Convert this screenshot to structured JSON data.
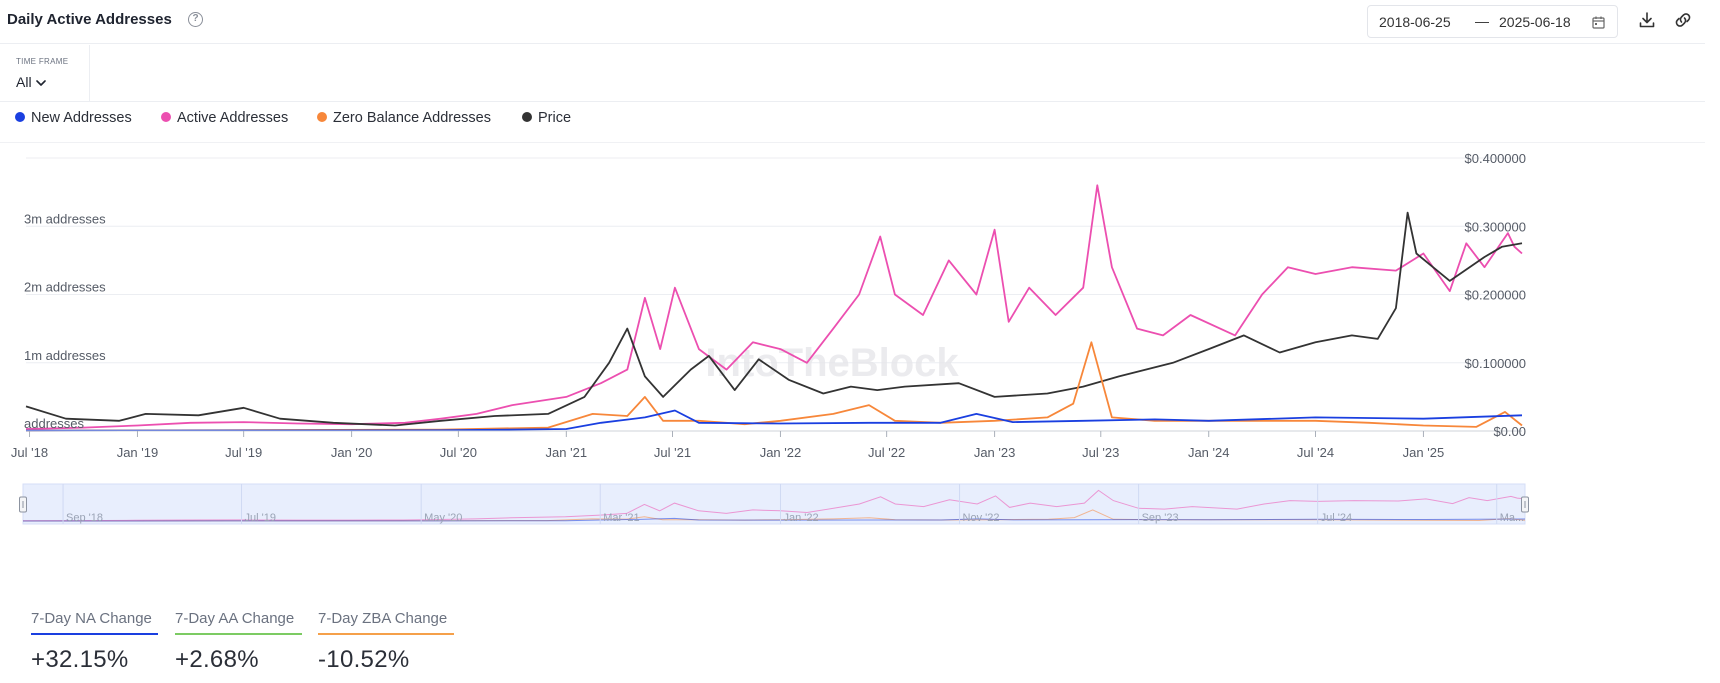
{
  "header": {
    "title": "Daily Active Addresses",
    "help_icon": "question-circle-icon",
    "date_start": "2018-06-25",
    "date_sep": "—",
    "date_end": "2025-06-18",
    "calendar_icon": "calendar-icon",
    "download_icon": "download-icon",
    "link_icon": "link-icon"
  },
  "timeframe": {
    "label": "TIME FRAME",
    "value": "All"
  },
  "legend": [
    {
      "label": "New Addresses",
      "color": "#1a3fe0"
    },
    {
      "label": "Active Addresses",
      "color": "#ec4fb0"
    },
    {
      "label": "Zero Balance Addresses",
      "color": "#f7873a"
    },
    {
      "label": "Price",
      "color": "#333333"
    }
  ],
  "watermark": "IntoTheBlock",
  "chart_data": {
    "type": "line",
    "x_ticks": [
      "Jul '18",
      "Jan '19",
      "Jul '19",
      "Jan '20",
      "Jul '20",
      "Jan '21",
      "Jul '21",
      "Jan '22",
      "Jul '22",
      "Jan '23",
      "Jul '23",
      "Jan '24",
      "Jul '24",
      "Jan '25"
    ],
    "y_left_ticks": [
      "addresses",
      "1m addresses",
      "2m addresses",
      "3m addresses"
    ],
    "y_right_ticks": [
      "$0.00",
      "$0.100000",
      "$0.200000",
      "$0.300000",
      "$0.400000"
    ],
    "y_left_range": [
      0,
      4000000
    ],
    "y_right_range": [
      0,
      0.4
    ],
    "x_range": [
      "2018-06-25",
      "2025-06-18"
    ],
    "grid": true,
    "legend_position": "top-left",
    "series": [
      {
        "name": "Active Addresses",
        "color": "#ec4fb0",
        "axis": "left",
        "points": [
          [
            "2018-06-25",
            30000
          ],
          [
            "2018-10-01",
            50000
          ],
          [
            "2019-01-01",
            80000
          ],
          [
            "2019-04-01",
            120000
          ],
          [
            "2019-07-01",
            130000
          ],
          [
            "2019-10-01",
            110000
          ],
          [
            "2020-01-01",
            100000
          ],
          [
            "2020-04-01",
            120000
          ],
          [
            "2020-06-01",
            180000
          ],
          [
            "2020-08-01",
            250000
          ],
          [
            "2020-10-01",
            380000
          ],
          [
            "2021-01-01",
            500000
          ],
          [
            "2021-03-01",
            700000
          ],
          [
            "2021-04-15",
            900000
          ],
          [
            "2021-05-15",
            1950000
          ],
          [
            "2021-06-10",
            1200000
          ],
          [
            "2021-07-05",
            2100000
          ],
          [
            "2021-08-15",
            1200000
          ],
          [
            "2021-10-01",
            900000
          ],
          [
            "2021-11-15",
            1300000
          ],
          [
            "2022-01-01",
            1200000
          ],
          [
            "2022-02-15",
            1000000
          ],
          [
            "2022-04-01",
            1500000
          ],
          [
            "2022-05-15",
            2000000
          ],
          [
            "2022-06-20",
            2850000
          ],
          [
            "2022-07-15",
            2000000
          ],
          [
            "2022-09-01",
            1700000
          ],
          [
            "2022-10-15",
            2500000
          ],
          [
            "2022-12-01",
            2000000
          ],
          [
            "2023-01-01",
            2950000
          ],
          [
            "2023-01-25",
            1600000
          ],
          [
            "2023-03-01",
            2100000
          ],
          [
            "2023-04-15",
            1700000
          ],
          [
            "2023-06-01",
            2100000
          ],
          [
            "2023-06-25",
            3600000
          ],
          [
            "2023-07-20",
            2400000
          ],
          [
            "2023-09-01",
            1500000
          ],
          [
            "2023-10-15",
            1400000
          ],
          [
            "2023-12-01",
            1700000
          ],
          [
            "2024-02-15",
            1400000
          ],
          [
            "2024-04-01",
            2000000
          ],
          [
            "2024-05-15",
            2400000
          ],
          [
            "2024-07-01",
            2300000
          ],
          [
            "2024-09-01",
            2400000
          ],
          [
            "2024-11-15",
            2350000
          ],
          [
            "2025-01-01",
            2600000
          ],
          [
            "2025-02-15",
            2050000
          ],
          [
            "2025-03-15",
            2750000
          ],
          [
            "2025-04-15",
            2400000
          ],
          [
            "2025-05-25",
            2900000
          ],
          [
            "2025-06-05",
            2700000
          ],
          [
            "2025-06-18",
            2600000
          ]
        ]
      },
      {
        "name": "Price",
        "color": "#333333",
        "axis": "right",
        "points": [
          [
            "2018-06-25",
            0.036
          ],
          [
            "2018-09-01",
            0.018
          ],
          [
            "2018-12-01",
            0.015
          ],
          [
            "2019-01-15",
            0.025
          ],
          [
            "2019-04-15",
            0.023
          ],
          [
            "2019-07-01",
            0.034
          ],
          [
            "2019-09-01",
            0.018
          ],
          [
            "2019-12-01",
            0.012
          ],
          [
            "2020-03-15",
            0.008
          ],
          [
            "2020-06-01",
            0.015
          ],
          [
            "2020-09-01",
            0.022
          ],
          [
            "2020-12-01",
            0.025
          ],
          [
            "2021-02-01",
            0.05
          ],
          [
            "2021-03-15",
            0.1
          ],
          [
            "2021-04-15",
            0.15
          ],
          [
            "2021-05-15",
            0.08
          ],
          [
            "2021-06-15",
            0.05
          ],
          [
            "2021-08-01",
            0.09
          ],
          [
            "2021-09-01",
            0.11
          ],
          [
            "2021-10-15",
            0.06
          ],
          [
            "2021-11-25",
            0.105
          ],
          [
            "2022-01-15",
            0.075
          ],
          [
            "2022-03-15",
            0.055
          ],
          [
            "2022-05-01",
            0.065
          ],
          [
            "2022-06-15",
            0.06
          ],
          [
            "2022-08-01",
            0.065
          ],
          [
            "2022-11-01",
            0.07
          ],
          [
            "2023-01-01",
            0.05
          ],
          [
            "2023-04-01",
            0.055
          ],
          [
            "2023-06-01",
            0.065
          ],
          [
            "2023-08-01",
            0.08
          ],
          [
            "2023-11-01",
            0.1
          ],
          [
            "2024-01-01",
            0.12
          ],
          [
            "2024-03-01",
            0.14
          ],
          [
            "2024-05-01",
            0.115
          ],
          [
            "2024-07-01",
            0.13
          ],
          [
            "2024-09-01",
            0.14
          ],
          [
            "2024-10-15",
            0.135
          ],
          [
            "2024-11-15",
            0.18
          ],
          [
            "2024-12-05",
            0.32
          ],
          [
            "2024-12-20",
            0.26
          ],
          [
            "2025-02-15",
            0.22
          ],
          [
            "2025-04-15",
            0.255
          ],
          [
            "2025-05-15",
            0.27
          ],
          [
            "2025-06-18",
            0.275
          ]
        ]
      },
      {
        "name": "Zero Balance Addresses",
        "color": "#f7873a",
        "axis": "left",
        "points": [
          [
            "2018-06-25",
            5000
          ],
          [
            "2019-06-01",
            10000
          ],
          [
            "2020-06-01",
            20000
          ],
          [
            "2020-12-01",
            50000
          ],
          [
            "2021-02-15",
            250000
          ],
          [
            "2021-04-15",
            220000
          ],
          [
            "2021-05-15",
            500000
          ],
          [
            "2021-06-15",
            150000
          ],
          [
            "2021-08-15",
            150000
          ],
          [
            "2021-11-01",
            100000
          ],
          [
            "2022-01-01",
            150000
          ],
          [
            "2022-04-01",
            250000
          ],
          [
            "2022-06-01",
            380000
          ],
          [
            "2022-07-15",
            150000
          ],
          [
            "2022-10-01",
            120000
          ],
          [
            "2023-01-01",
            150000
          ],
          [
            "2023-04-01",
            200000
          ],
          [
            "2023-05-15",
            400000
          ],
          [
            "2023-06-15",
            1300000
          ],
          [
            "2023-07-20",
            200000
          ],
          [
            "2023-10-01",
            150000
          ],
          [
            "2024-01-01",
            150000
          ],
          [
            "2024-07-01",
            150000
          ],
          [
            "2024-10-01",
            120000
          ],
          [
            "2025-01-01",
            80000
          ],
          [
            "2025-04-01",
            60000
          ],
          [
            "2025-05-20",
            280000
          ],
          [
            "2025-06-18",
            80000
          ]
        ]
      },
      {
        "name": "New Addresses",
        "color": "#1a3fe0",
        "axis": "left",
        "points": [
          [
            "2018-06-25",
            5000
          ],
          [
            "2019-06-01",
            8000
          ],
          [
            "2020-06-01",
            10000
          ],
          [
            "2021-01-01",
            30000
          ],
          [
            "2021-03-01",
            120000
          ],
          [
            "2021-05-15",
            200000
          ],
          [
            "2021-07-05",
            300000
          ],
          [
            "2021-08-15",
            120000
          ],
          [
            "2022-01-01",
            110000
          ],
          [
            "2022-06-01",
            120000
          ],
          [
            "2022-10-01",
            120000
          ],
          [
            "2022-12-01",
            250000
          ],
          [
            "2023-02-01",
            130000
          ],
          [
            "2023-06-01",
            150000
          ],
          [
            "2023-10-01",
            170000
          ],
          [
            "2024-01-01",
            150000
          ],
          [
            "2024-07-01",
            200000
          ],
          [
            "2025-01-01",
            180000
          ],
          [
            "2025-06-18",
            230000
          ]
        ]
      }
    ],
    "navigator_ticks": [
      "Sep '18",
      "Jul '19",
      "May '20",
      "Mar '21",
      "Jan '22",
      "Nov '22",
      "Sep '23",
      "Jul '24",
      "Ma..."
    ]
  },
  "stats": [
    {
      "label": "7-Day NA Change",
      "value": "+32.15%",
      "color": "#1a3fe0"
    },
    {
      "label": "7-Day AA Change",
      "value": "+2.68%",
      "color": "#7ccb63"
    },
    {
      "label": "7-Day ZBA Change",
      "value": "-10.52%",
      "color": "#f5a04a"
    }
  ]
}
